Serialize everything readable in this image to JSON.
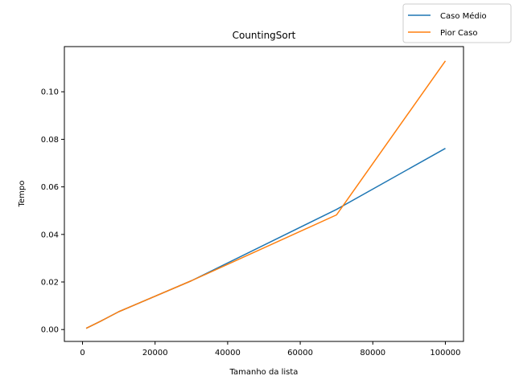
{
  "chart_data": {
    "type": "line",
    "title": "CountingSort",
    "xlabel": "Tamanho da lista",
    "ylabel": "Tempo",
    "xlim": [
      -5000,
      105000
    ],
    "ylim": [
      -0.005,
      0.119
    ],
    "xticks": [
      0,
      20000,
      40000,
      60000,
      80000,
      100000
    ],
    "xtick_labels": [
      "0",
      "20000",
      "40000",
      "60000",
      "80000",
      "100000"
    ],
    "yticks": [
      0.0,
      0.02,
      0.04,
      0.06,
      0.08,
      0.1
    ],
    "ytick_labels": [
      "0.00",
      "0.02",
      "0.04",
      "0.06",
      "0.08",
      "0.10"
    ],
    "grid": false,
    "legend_position": "top-right",
    "series": [
      {
        "name": "Caso Médio",
        "color": "#1f77b4",
        "x": [
          1000,
          5000,
          10000,
          30000,
          70000,
          100000
        ],
        "y": [
          0.0005,
          0.0035,
          0.0075,
          0.0205,
          0.0505,
          0.0762
        ]
      },
      {
        "name": "Pior Caso",
        "color": "#ff7f0e",
        "x": [
          1000,
          5000,
          10000,
          30000,
          70000,
          100000
        ],
        "y": [
          0.0005,
          0.0035,
          0.0075,
          0.0205,
          0.0482,
          0.113
        ]
      }
    ]
  }
}
